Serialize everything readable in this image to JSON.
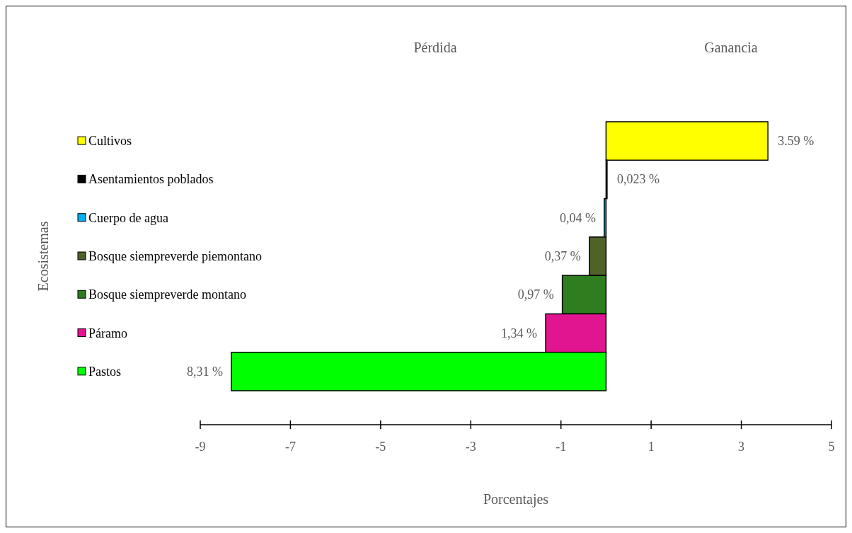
{
  "chart_data": {
    "type": "bar",
    "orientation": "horizontal",
    "xlabel": "Porcentajes",
    "ylabel": "Ecosistemas",
    "annotations": [
      "Pérdida",
      "Ganancia"
    ],
    "categories": [
      "Cultivos",
      "Asentamientos poblados",
      "Cuerpo de agua",
      "Bosque siempreverde piemontano",
      "Bosque siempreverde montano",
      "Páramo",
      "Pastos"
    ],
    "values": [
      3.59,
      0.023,
      0.04,
      0.37,
      0.97,
      1.34,
      8.31
    ],
    "base": [
      0,
      0,
      -0.04,
      -0.37,
      -0.97,
      -1.34,
      -8.31
    ],
    "colors": [
      "#ffff00",
      "#000000",
      "#00b0f0",
      "#4f6228",
      "#2e7d1f",
      "#e0158f",
      "#00ff00"
    ],
    "value_labels": [
      "3.59 %",
      "0,023 %",
      "0,04 %",
      "0,37 %",
      "0,97 %",
      "1,34 %",
      "8,31 %"
    ],
    "xlim": [
      -9,
      5
    ],
    "xticks": [
      -9,
      -7,
      -5,
      -3,
      -1,
      1,
      3,
      5
    ],
    "grid": false
  }
}
